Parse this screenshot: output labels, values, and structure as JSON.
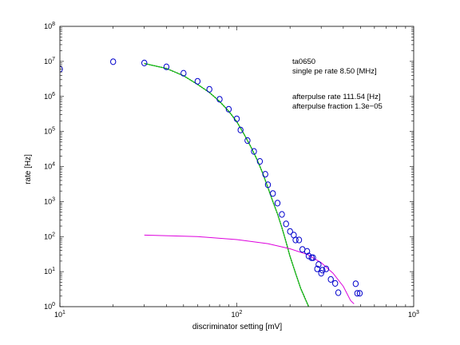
{
  "chart_data": {
    "type": "scatter",
    "title": "",
    "xlabel": "discriminator setting [mV]",
    "ylabel": "rate [Hz]",
    "xscale": "log",
    "yscale": "log",
    "xlim": [
      10,
      1000
    ],
    "ylim": [
      1,
      100000000
    ],
    "x_ticks": [
      {
        "value": 10,
        "base": "10",
        "exp": "1"
      },
      {
        "value": 100,
        "base": "10",
        "exp": "2"
      },
      {
        "value": 1000,
        "base": "10",
        "exp": "3"
      }
    ],
    "y_ticks": [
      {
        "value": 1,
        "base": "10",
        "exp": "0"
      },
      {
        "value": 10,
        "base": "10",
        "exp": "1"
      },
      {
        "value": 100,
        "base": "10",
        "exp": "2"
      },
      {
        "value": 1000,
        "base": "10",
        "exp": "3"
      },
      {
        "value": 10000,
        "base": "10",
        "exp": "4"
      },
      {
        "value": 100000,
        "base": "10",
        "exp": "5"
      },
      {
        "value": 1000000,
        "base": "10",
        "exp": "6"
      },
      {
        "value": 10000000,
        "base": "10",
        "exp": "7"
      },
      {
        "value": 100000000,
        "base": "10",
        "exp": "8"
      }
    ],
    "annotations": [
      "ta0650",
      "single pe rate 8.50 [MHz]",
      "afterpulse rate 111.54 [Hz]",
      "afterpulse fraction 1.3e−05"
    ],
    "colors": {
      "points": "#0000cc",
      "fit_main": "#00cc00",
      "fit_afterpulse": "#dd00dd",
      "fit_main_dark": "#333333"
    },
    "series": [
      {
        "style": "markers",
        "points": [
          [
            10,
            6000000
          ],
          [
            20,
            9800000
          ],
          [
            30,
            9000000
          ],
          [
            40,
            7000000
          ],
          [
            50,
            4600000
          ],
          [
            60,
            2700000
          ],
          [
            70,
            1600000
          ],
          [
            80,
            830000
          ],
          [
            90,
            430000
          ],
          [
            100,
            230000
          ],
          [
            105,
            110000
          ],
          [
            115,
            55000
          ],
          [
            125,
            27000
          ],
          [
            135,
            14000
          ],
          [
            145,
            6000
          ],
          [
            150,
            3000
          ],
          [
            160,
            1700
          ],
          [
            170,
            900
          ],
          [
            180,
            430
          ],
          [
            190,
            230
          ],
          [
            200,
            140
          ],
          [
            210,
            110
          ],
          [
            215,
            80
          ],
          [
            225,
            80
          ],
          [
            235,
            43
          ],
          [
            250,
            38
          ],
          [
            255,
            28
          ],
          [
            265,
            25
          ],
          [
            270,
            25
          ],
          [
            285,
            12
          ],
          [
            290,
            16
          ],
          [
            300,
            9
          ],
          [
            305,
            11
          ],
          [
            320,
            12
          ],
          [
            340,
            6
          ],
          [
            360,
            4.6
          ],
          [
            375,
            2.5
          ],
          [
            470,
            4.5
          ],
          [
            480,
            2.4
          ],
          [
            495,
            2.4
          ]
        ]
      },
      {
        "style": "line",
        "color_key": "fit_main",
        "points": [
          [
            30,
            8700000
          ],
          [
            40,
            6300000
          ],
          [
            50,
            3900000
          ],
          [
            60,
            2200000
          ],
          [
            70,
            1300000
          ],
          [
            80,
            720000
          ],
          [
            90,
            380000
          ],
          [
            100,
            190000
          ],
          [
            110,
            83000
          ],
          [
            120,
            37000
          ],
          [
            130,
            16000
          ],
          [
            140,
            6500
          ],
          [
            150,
            2500
          ],
          [
            160,
            1000
          ],
          [
            170,
            440
          ],
          [
            180,
            180
          ],
          [
            190,
            70
          ],
          [
            200,
            27
          ],
          [
            215,
            9
          ],
          [
            230,
            3.3
          ],
          [
            255,
            1
          ]
        ]
      },
      {
        "style": "line",
        "color_key": "fit_afterpulse",
        "points": [
          [
            30,
            110
          ],
          [
            60,
            100
          ],
          [
            100,
            82
          ],
          [
            150,
            63
          ],
          [
            200,
            45
          ],
          [
            250,
            31
          ],
          [
            300,
            18
          ],
          [
            350,
            9
          ],
          [
            400,
            3.8
          ],
          [
            440,
            1.5
          ],
          [
            460,
            1.2
          ]
        ]
      }
    ]
  }
}
